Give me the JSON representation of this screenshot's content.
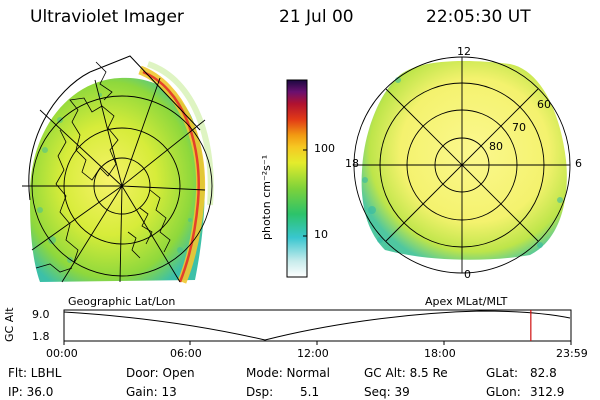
{
  "header": {
    "instrument": "Ultraviolet Imager",
    "date": "21 Jul 00",
    "time": "22:05:30 UT"
  },
  "left_panel": {
    "caption": "Geographic Lat/Lon"
  },
  "right_panel": {
    "caption": "Apex MLat/MLT",
    "mlt_labels": [
      "12",
      "18",
      "6",
      "0"
    ],
    "lat_labels": [
      "60",
      "70",
      "80"
    ]
  },
  "colorbar": {
    "unit_label": "photon cm⁻²s⁻¹",
    "tick_labels": [
      "100",
      "10"
    ],
    "scale": "log"
  },
  "timeline": {
    "axis_label": "GC Alt",
    "y_ticks": [
      "9.0",
      "1.8"
    ],
    "x_ticks": [
      "00:00",
      "06:00",
      "12:00",
      "18:00",
      "23:59"
    ],
    "current_marker_time": "22:05",
    "marker_color": "#d01010"
  },
  "info": {
    "filter": "Flt: LBHL",
    "ip": "IP: 36.0",
    "door": "Door: Open",
    "gain": "Gain: 13",
    "mode": "Mode: Normal",
    "dsp_label": "Dsp:",
    "dsp_value": "5.1",
    "gc_alt": "GC Alt: 8.5 Re",
    "seq": "Seq: 39",
    "glat_label": "GLat:",
    "glat_value": "82.8",
    "glon_label": "GLon:",
    "glon_value": "312.9"
  }
}
